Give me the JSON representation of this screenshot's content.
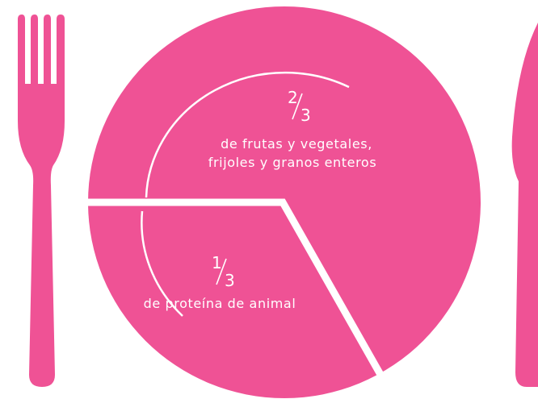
{
  "sections": [
    {
      "fraction": {
        "numerator": "2",
        "denominator": "3"
      },
      "lines": [
        "de frutas y vegetales,",
        "frijoles y granos enteros"
      ]
    },
    {
      "fraction": {
        "numerator": "1",
        "denominator": "3"
      },
      "lines": [
        "de proteína de animal"
      ]
    }
  ]
}
